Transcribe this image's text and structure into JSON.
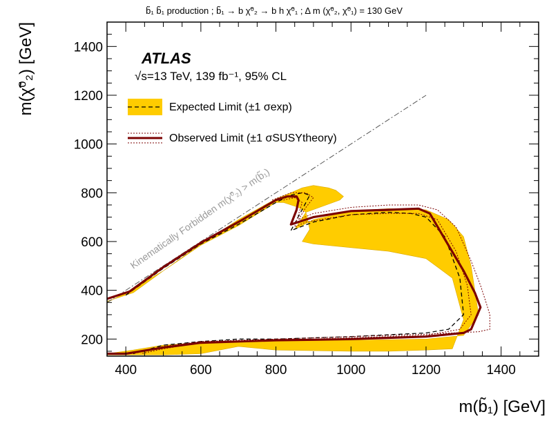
{
  "chart_data": {
    "type": "line",
    "title": "b̃₁ b̃₁ production ; b̃₁ → b χ̃⁰₂ → b h χ̃⁰₁ ; Δ m (χ̃⁰₂, χ̃⁰₁) = 130 GeV",
    "experiment": "ATLAS",
    "info": "√s=13 TeV, 139 fb⁻¹, 95% CL",
    "xlabel": "m(b̃₁) [GeV]",
    "ylabel": "m(χ̃⁰₂) [GeV]",
    "xlim": [
      350,
      1500
    ],
    "ylim": [
      130,
      1500
    ],
    "xticks": [
      400,
      600,
      800,
      1000,
      1200,
      1400
    ],
    "yticks": [
      200,
      400,
      600,
      800,
      1000,
      1200,
      1400
    ],
    "diagonal_label": "Kinematically Forbidden m(χ̃⁰₂) > m(b̃₁)",
    "legend": [
      {
        "label": "Expected Limit (±1 σexp)",
        "color": "#ffcc00"
      },
      {
        "label": "Observed Limit (±1 σSUSYtheory)",
        "color": "#7b0000"
      }
    ],
    "series": [
      {
        "kind": "expected_band",
        "color": "#ffcc00",
        "x": [
          350,
          420,
          500,
          600,
          700,
          800,
          840,
          870,
          900,
          940,
          960,
          980,
          970,
          880,
          850,
          900,
          1000,
          1100,
          1200,
          1260,
          1300,
          1320,
          1340,
          1300,
          1200,
          1000,
          800,
          700,
          600,
          500,
          420,
          350,
          350,
          420,
          500,
          600,
          700,
          800,
          1000,
          1100,
          1200,
          1270,
          1280,
          1300,
          1270,
          1200,
          1100,
          1000,
          900,
          870,
          890,
          880,
          860,
          820,
          800,
          700,
          600,
          500,
          400,
          350
        ],
        "y": [
          355,
          390,
          480,
          590,
          690,
          775,
          800,
          820,
          830,
          820,
          810,
          785,
          770,
          720,
          650,
          690,
          725,
          735,
          730,
          690,
          620,
          500,
          300,
          215,
          200,
          195,
          195,
          190,
          185,
          175,
          155,
          140,
          135,
          135,
          135,
          140,
          170,
          155,
          150,
          150,
          155,
          160,
          200,
          280,
          450,
          530,
          560,
          575,
          590,
          600,
          650,
          720,
          740,
          760,
          760,
          665,
          585,
          480,
          390,
          350
        ]
      },
      {
        "kind": "expected",
        "color": "#000000",
        "x": [
          400,
          500,
          600,
          700,
          800,
          840,
          870,
          890,
          880,
          840,
          900,
          1000,
          1100,
          1160,
          1200,
          1250,
          1290,
          1300,
          1260,
          1200,
          1000,
          800,
          700,
          600,
          500,
          420
        ],
        "y": [
          380,
          490,
          590,
          670,
          760,
          790,
          800,
          790,
          760,
          645,
          680,
          710,
          720,
          715,
          700,
          620,
          450,
          300,
          240,
          225,
          210,
          200,
          200,
          190,
          175,
          140
        ]
      },
      {
        "kind": "observed",
        "color": "#7b0000",
        "x": [
          350,
          410,
          500,
          600,
          700,
          800,
          830,
          855,
          860,
          855,
          840,
          900,
          1000,
          1100,
          1180,
          1210,
          1250,
          1300,
          1330,
          1345,
          1320,
          1300,
          1200,
          1100,
          1000,
          900,
          800,
          700,
          600,
          500,
          400,
          350
        ],
        "y": [
          365,
          395,
          495,
          595,
          680,
          770,
          785,
          785,
          770,
          730,
          670,
          700,
          725,
          730,
          735,
          715,
          610,
          480,
          390,
          330,
          240,
          225,
          210,
          205,
          200,
          197,
          195,
          190,
          185,
          165,
          140,
          140
        ]
      },
      {
        "kind": "observed_up",
        "color": "#7b0000",
        "x": [
          790,
          840,
          880,
          900,
          880,
          860,
          900,
          1000,
          1100,
          1180,
          1230,
          1280,
          1320,
          1345,
          1360,
          1370,
          1370,
          1340,
          1200,
          1000,
          800,
          600,
          500,
          420
        ],
        "y": [
          770,
          800,
          800,
          780,
          740,
          690,
          715,
          740,
          750,
          750,
          730,
          660,
          520,
          420,
          350,
          300,
          240,
          230,
          220,
          210,
          200,
          190,
          170,
          140
        ]
      },
      {
        "kind": "observed_down",
        "color": "#7b0000",
        "x": [
          820,
          850,
          870,
          860,
          850,
          880,
          1000,
          1100,
          1180,
          1230,
          1280,
          1310,
          1320,
          1290,
          1200,
          1000,
          800,
          600,
          500,
          440
        ],
        "y": [
          770,
          780,
          760,
          710,
          660,
          680,
          710,
          715,
          715,
          690,
          560,
          420,
          300,
          240,
          215,
          205,
          195,
          185,
          160,
          140
        ]
      },
      {
        "kind": "kinematic_diagonal",
        "color": "#666666",
        "x": [
          350,
          1200
        ],
        "y": [
          350,
          1200
        ]
      }
    ]
  }
}
